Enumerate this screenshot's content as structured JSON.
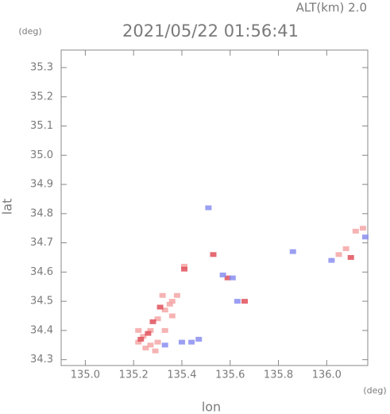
{
  "chart_data": {
    "type": "scatter",
    "title": "2021/05/22 01:56:41",
    "subtitle": "ALT(km) 2.0",
    "x_label": "lon",
    "y_label": "lat",
    "x_unit": "(deg)",
    "y_unit": "(deg)",
    "xlim": [
      134.9,
      136.17
    ],
    "ylim": [
      34.28,
      35.36
    ],
    "xticks": [
      {
        "value": 135,
        "label": "135.0"
      },
      135.2,
      135.4,
      135.6,
      135.8,
      {
        "value": 136,
        "label": "136.0"
      }
    ],
    "yticks": [
      34.3,
      34.4,
      34.5,
      34.6,
      34.7,
      34.8,
      34.9,
      {
        "value": 35,
        "label": "35.0"
      },
      35.1,
      35.2,
      35.3
    ],
    "series": [
      {
        "color": "#f4a6a6",
        "x": [
          135.22,
          135.24,
          135.27,
          135.3,
          135.33,
          135.36,
          135.27,
          135.3,
          135.33,
          135.36,
          135.38,
          135.25,
          135.29,
          135.32,
          135.41,
          136.05,
          136.08,
          136.12,
          136.15,
          135.22,
          135.35
        ],
        "y": [
          34.36,
          34.38,
          34.35,
          34.36,
          34.4,
          34.45,
          34.4,
          34.44,
          34.47,
          34.5,
          34.52,
          34.34,
          34.33,
          34.52,
          34.62,
          34.66,
          34.68,
          34.74,
          34.75,
          34.4,
          34.49
        ]
      },
      {
        "color": "#e0505a",
        "x": [
          135.26,
          135.28,
          135.31,
          135.23,
          135.41,
          135.53,
          135.59,
          135.66,
          136.1
        ],
        "y": [
          34.39,
          34.43,
          34.48,
          34.37,
          34.61,
          34.66,
          34.58,
          34.5,
          34.65
        ]
      },
      {
        "color": "#8a8ef0",
        "x": [
          135.33,
          135.4,
          135.44,
          135.47,
          135.51,
          135.57,
          135.61,
          135.63,
          135.86,
          136.02,
          136.16
        ],
        "y": [
          34.35,
          34.36,
          34.36,
          34.37,
          34.82,
          34.59,
          34.58,
          34.5,
          34.67,
          34.64,
          34.72
        ]
      }
    ]
  }
}
